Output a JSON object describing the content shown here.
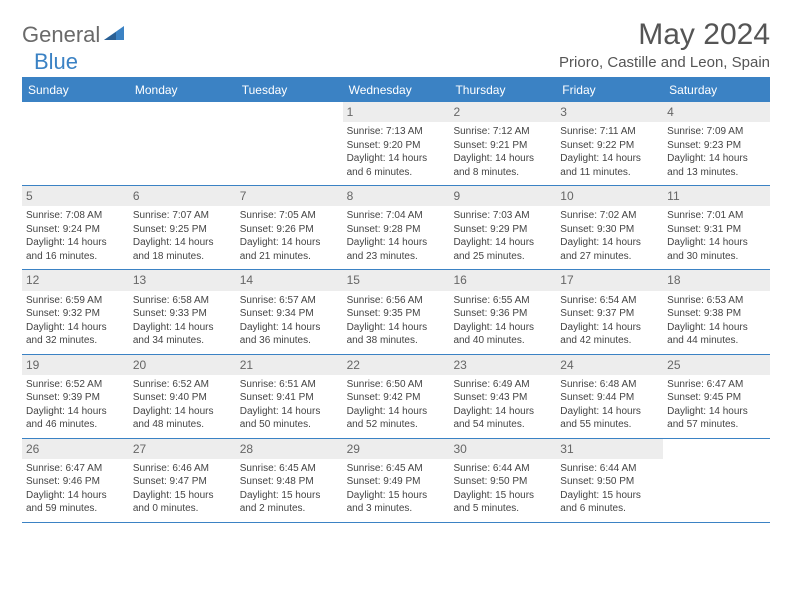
{
  "brand": {
    "part1": "General",
    "part2": "Blue"
  },
  "title": "May 2024",
  "location": "Prioro, Castille and Leon, Spain",
  "colors": {
    "accent": "#3b82c4",
    "daynum_bg": "#ededed",
    "text": "#555555",
    "celltext": "#444444"
  },
  "weekdays": [
    "Sunday",
    "Monday",
    "Tuesday",
    "Wednesday",
    "Thursday",
    "Friday",
    "Saturday"
  ],
  "weeks": [
    [
      null,
      null,
      null,
      {
        "n": "1",
        "sr": "7:13 AM",
        "ss": "9:20 PM",
        "d1": "14 hours",
        "d2": "and 6 minutes."
      },
      {
        "n": "2",
        "sr": "7:12 AM",
        "ss": "9:21 PM",
        "d1": "14 hours",
        "d2": "and 8 minutes."
      },
      {
        "n": "3",
        "sr": "7:11 AM",
        "ss": "9:22 PM",
        "d1": "14 hours",
        "d2": "and 11 minutes."
      },
      {
        "n": "4",
        "sr": "7:09 AM",
        "ss": "9:23 PM",
        "d1": "14 hours",
        "d2": "and 13 minutes."
      }
    ],
    [
      {
        "n": "5",
        "sr": "7:08 AM",
        "ss": "9:24 PM",
        "d1": "14 hours",
        "d2": "and 16 minutes."
      },
      {
        "n": "6",
        "sr": "7:07 AM",
        "ss": "9:25 PM",
        "d1": "14 hours",
        "d2": "and 18 minutes."
      },
      {
        "n": "7",
        "sr": "7:05 AM",
        "ss": "9:26 PM",
        "d1": "14 hours",
        "d2": "and 21 minutes."
      },
      {
        "n": "8",
        "sr": "7:04 AM",
        "ss": "9:28 PM",
        "d1": "14 hours",
        "d2": "and 23 minutes."
      },
      {
        "n": "9",
        "sr": "7:03 AM",
        "ss": "9:29 PM",
        "d1": "14 hours",
        "d2": "and 25 minutes."
      },
      {
        "n": "10",
        "sr": "7:02 AM",
        "ss": "9:30 PM",
        "d1": "14 hours",
        "d2": "and 27 minutes."
      },
      {
        "n": "11",
        "sr": "7:01 AM",
        "ss": "9:31 PM",
        "d1": "14 hours",
        "d2": "and 30 minutes."
      }
    ],
    [
      {
        "n": "12",
        "sr": "6:59 AM",
        "ss": "9:32 PM",
        "d1": "14 hours",
        "d2": "and 32 minutes."
      },
      {
        "n": "13",
        "sr": "6:58 AM",
        "ss": "9:33 PM",
        "d1": "14 hours",
        "d2": "and 34 minutes."
      },
      {
        "n": "14",
        "sr": "6:57 AM",
        "ss": "9:34 PM",
        "d1": "14 hours",
        "d2": "and 36 minutes."
      },
      {
        "n": "15",
        "sr": "6:56 AM",
        "ss": "9:35 PM",
        "d1": "14 hours",
        "d2": "and 38 minutes."
      },
      {
        "n": "16",
        "sr": "6:55 AM",
        "ss": "9:36 PM",
        "d1": "14 hours",
        "d2": "and 40 minutes."
      },
      {
        "n": "17",
        "sr": "6:54 AM",
        "ss": "9:37 PM",
        "d1": "14 hours",
        "d2": "and 42 minutes."
      },
      {
        "n": "18",
        "sr": "6:53 AM",
        "ss": "9:38 PM",
        "d1": "14 hours",
        "d2": "and 44 minutes."
      }
    ],
    [
      {
        "n": "19",
        "sr": "6:52 AM",
        "ss": "9:39 PM",
        "d1": "14 hours",
        "d2": "and 46 minutes."
      },
      {
        "n": "20",
        "sr": "6:52 AM",
        "ss": "9:40 PM",
        "d1": "14 hours",
        "d2": "and 48 minutes."
      },
      {
        "n": "21",
        "sr": "6:51 AM",
        "ss": "9:41 PM",
        "d1": "14 hours",
        "d2": "and 50 minutes."
      },
      {
        "n": "22",
        "sr": "6:50 AM",
        "ss": "9:42 PM",
        "d1": "14 hours",
        "d2": "and 52 minutes."
      },
      {
        "n": "23",
        "sr": "6:49 AM",
        "ss": "9:43 PM",
        "d1": "14 hours",
        "d2": "and 54 minutes."
      },
      {
        "n": "24",
        "sr": "6:48 AM",
        "ss": "9:44 PM",
        "d1": "14 hours",
        "d2": "and 55 minutes."
      },
      {
        "n": "25",
        "sr": "6:47 AM",
        "ss": "9:45 PM",
        "d1": "14 hours",
        "d2": "and 57 minutes."
      }
    ],
    [
      {
        "n": "26",
        "sr": "6:47 AM",
        "ss": "9:46 PM",
        "d1": "14 hours",
        "d2": "and 59 minutes."
      },
      {
        "n": "27",
        "sr": "6:46 AM",
        "ss": "9:47 PM",
        "d1": "15 hours",
        "d2": "and 0 minutes."
      },
      {
        "n": "28",
        "sr": "6:45 AM",
        "ss": "9:48 PM",
        "d1": "15 hours",
        "d2": "and 2 minutes."
      },
      {
        "n": "29",
        "sr": "6:45 AM",
        "ss": "9:49 PM",
        "d1": "15 hours",
        "d2": "and 3 minutes."
      },
      {
        "n": "30",
        "sr": "6:44 AM",
        "ss": "9:50 PM",
        "d1": "15 hours",
        "d2": "and 5 minutes."
      },
      {
        "n": "31",
        "sr": "6:44 AM",
        "ss": "9:50 PM",
        "d1": "15 hours",
        "d2": "and 6 minutes."
      },
      null
    ]
  ],
  "labels": {
    "sunrise": "Sunrise: ",
    "sunset": "Sunset: ",
    "daylight": "Daylight: "
  }
}
